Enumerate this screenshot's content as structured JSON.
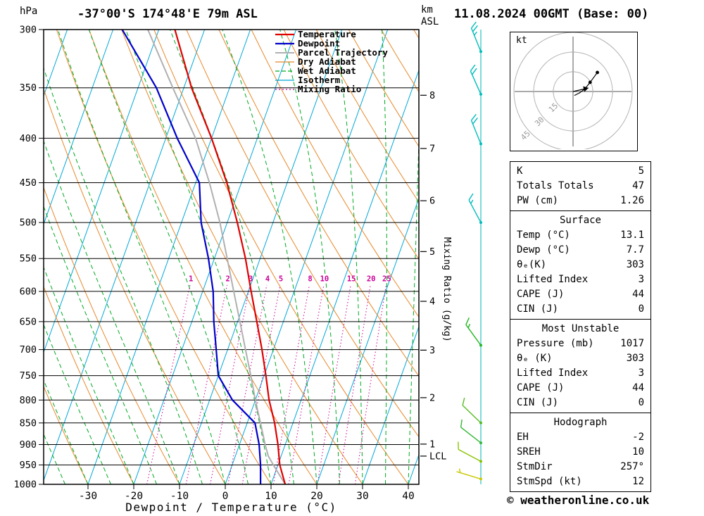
{
  "header": {
    "pressure_unit": "hPa",
    "title": "-37°00'S 174°48'E 79m ASL",
    "datetime": "11.08.2024 00GMT (Base: 00)",
    "altitude_unit_line1": "km",
    "altitude_unit_line2": "ASL"
  },
  "footer": {
    "copyright": "© weatheronline.co.uk"
  },
  "axes": {
    "bottom_label": "Dewpoint / Temperature (°C)",
    "right_label": "Mixing Ratio (g/kg)",
    "pressure_ticks": [
      300,
      350,
      400,
      450,
      500,
      550,
      600,
      650,
      700,
      750,
      800,
      850,
      900,
      950,
      1000
    ],
    "temp_ticks": [
      -30,
      -20,
      -10,
      0,
      10,
      20,
      30,
      40
    ],
    "km_ticks": [
      {
        "label": "8",
        "p": 357
      },
      {
        "label": "7",
        "p": 411
      },
      {
        "label": "6",
        "p": 472
      },
      {
        "label": "5",
        "p": 540
      },
      {
        "label": "4",
        "p": 616
      },
      {
        "label": "3",
        "p": 701
      },
      {
        "label": "2",
        "p": 795
      },
      {
        "label": "1",
        "p": 899
      }
    ],
    "lcl": {
      "label": "LCL",
      "p": 928
    }
  },
  "legend": [
    {
      "label": "Temperature",
      "color": "#e00000",
      "style": "solid",
      "width": 2.2
    },
    {
      "label": "Dewpoint",
      "color": "#0000cc",
      "style": "solid",
      "width": 2.2
    },
    {
      "label": "Parcel Trajectory",
      "color": "#b0b0b0",
      "style": "solid",
      "width": 2
    },
    {
      "label": "Dry Adiabat",
      "color": "#e8882a",
      "style": "solid",
      "width": 1.2
    },
    {
      "label": "Wet Adiabat",
      "color": "#00aa22",
      "style": "dashed",
      "width": 1.2
    },
    {
      "label": "Isotherm",
      "color": "#00a8d8",
      "style": "solid",
      "width": 1.2
    },
    {
      "label": "Mixing Ratio",
      "color": "#cc0099",
      "style": "dotted",
      "width": 1.2
    }
  ],
  "colors": {
    "temperature": "#e00000",
    "dewpoint": "#0000cc",
    "parcel": "#b0b0b0",
    "dry_adiabat": "#e8882a",
    "wet_adiabat": "#00aa22",
    "isotherm": "#00a8d8",
    "mixing_ratio": "#cc0099",
    "grid": "#000000",
    "wind_axis": "#00b4b4"
  },
  "chart_data": {
    "type": "skewt_sounding",
    "pressure_range_hpa": [
      300,
      1000
    ],
    "temp_axis_c": [
      -40,
      40
    ],
    "isotherm_step_c": 10,
    "dry_adiabat_step_k": 10,
    "wet_adiabat_step_c": 5,
    "mixing_ratio_g_kg": [
      1,
      2,
      3,
      4,
      5,
      8,
      10,
      15,
      20,
      25
    ],
    "temperature_profile": [
      [
        1000,
        13.1
      ],
      [
        950,
        10.4
      ],
      [
        900,
        8.4
      ],
      [
        850,
        6.0
      ],
      [
        800,
        3.0
      ],
      [
        750,
        0.4
      ],
      [
        700,
        -2.5
      ],
      [
        650,
        -5.8
      ],
      [
        600,
        -9.4
      ],
      [
        550,
        -13.2
      ],
      [
        500,
        -17.8
      ],
      [
        450,
        -23.2
      ],
      [
        400,
        -30.0
      ],
      [
        350,
        -38.3
      ],
      [
        300,
        -46.5
      ]
    ],
    "dewpoint_profile": [
      [
        1000,
        7.7
      ],
      [
        950,
        6.2
      ],
      [
        900,
        4.3
      ],
      [
        850,
        1.7
      ],
      [
        800,
        -5.0
      ],
      [
        750,
        -10.0
      ],
      [
        700,
        -12.5
      ],
      [
        650,
        -15.2
      ],
      [
        600,
        -17.7
      ],
      [
        550,
        -21.3
      ],
      [
        500,
        -25.7
      ],
      [
        450,
        -29.2
      ],
      [
        400,
        -37.5
      ],
      [
        350,
        -46.0
      ],
      [
        300,
        -58.0
      ]
    ],
    "parcel_profile": [
      [
        1000,
        13.1
      ],
      [
        950,
        9.0
      ],
      [
        928,
        7.2
      ],
      [
        900,
        5.6
      ],
      [
        850,
        2.9
      ],
      [
        800,
        0.0
      ],
      [
        750,
        -2.9
      ],
      [
        700,
        -6.1
      ],
      [
        650,
        -9.5
      ],
      [
        600,
        -13.2
      ],
      [
        550,
        -17.2
      ],
      [
        500,
        -21.6
      ],
      [
        450,
        -27.0
      ],
      [
        400,
        -33.5
      ],
      [
        350,
        -42.4
      ],
      [
        300,
        -52.4
      ]
    ],
    "winds": [
      {
        "p": 318,
        "angle": 112,
        "speed_kt": 25,
        "color": "#00bcbc"
      },
      {
        "p": 356,
        "angle": 114,
        "speed_kt": 20,
        "color": "#00bcbc"
      },
      {
        "p": 406,
        "angle": 112,
        "speed_kt": 20,
        "color": "#00bcbc"
      },
      {
        "p": 500,
        "angle": 118,
        "speed_kt": 15,
        "color": "#00bcbc"
      },
      {
        "p": 692,
        "angle": 126,
        "speed_kt": 15,
        "color": "#22b822"
      },
      {
        "p": 850,
        "angle": 136,
        "speed_kt": 10,
        "color": "#55bb22"
      },
      {
        "p": 896,
        "angle": 142,
        "speed_kt": 10,
        "color": "#33b833"
      },
      {
        "p": 941,
        "angle": 152,
        "speed_kt": 10,
        "color": "#88c400"
      },
      {
        "p": 986,
        "angle": 163,
        "speed_kt": 5,
        "color": "#c8c800"
      }
    ]
  },
  "hodograph": {
    "unit_label": "kt",
    "rings_kt": [
      15,
      30,
      45
    ],
    "trace_kt": [
      [
        1,
        -3
      ],
      [
        5,
        -1
      ],
      [
        9,
        2
      ],
      [
        13,
        7
      ],
      [
        18.5,
        14.5
      ]
    ],
    "dots_kt": [
      [
        13,
        7
      ],
      [
        18.5,
        14.5
      ]
    ],
    "storm_vector_kt": [
      11.7,
      2.7
    ]
  },
  "stats": {
    "sections": [
      {
        "header": null,
        "rows": [
          [
            "K",
            "5"
          ],
          [
            "Totals Totals",
            "47"
          ],
          [
            "PW (cm)",
            "1.26"
          ]
        ]
      },
      {
        "header": "Surface",
        "rows": [
          [
            "Temp (°C)",
            "13.1"
          ],
          [
            "Dewp (°C)",
            "7.7"
          ],
          [
            "θₑ(K)",
            "303"
          ],
          [
            "Lifted Index",
            "3"
          ],
          [
            "CAPE (J)",
            "44"
          ],
          [
            "CIN (J)",
            "0"
          ]
        ]
      },
      {
        "header": "Most Unstable",
        "rows": [
          [
            "Pressure (mb)",
            "1017"
          ],
          [
            "θₑ (K)",
            "303"
          ],
          [
            "Lifted Index",
            "3"
          ],
          [
            "CAPE (J)",
            "44"
          ],
          [
            "CIN (J)",
            "0"
          ]
        ]
      },
      {
        "header": "Hodograph",
        "rows": [
          [
            "EH",
            "-2"
          ],
          [
            "SREH",
            "10"
          ],
          [
            "StmDir",
            "257°"
          ],
          [
            "StmSpd (kt)",
            "12"
          ]
        ]
      }
    ]
  }
}
